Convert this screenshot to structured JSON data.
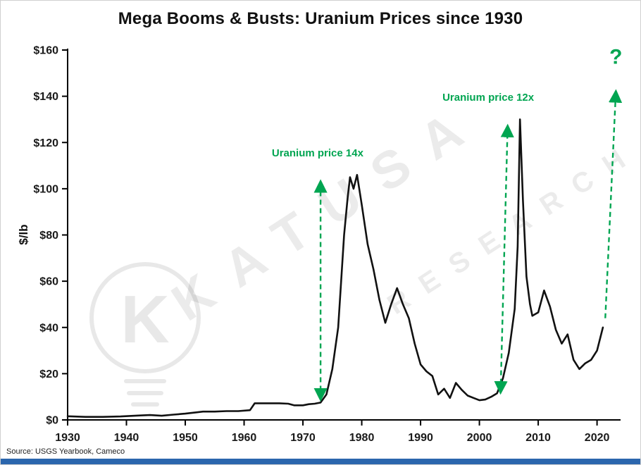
{
  "title": "Mega Booms & Busts: Uranium Prices since 1930",
  "footer": {
    "source": "Source: USGS Yearbook, Cameco"
  },
  "watermark": {
    "line1": "KATUSA",
    "line2": "RESEARCH"
  },
  "colors": {
    "accent_green": "#00A551",
    "line": "#111111",
    "axis": "#000000",
    "footer_bar": "#2b66ad"
  },
  "chart_data": {
    "type": "line",
    "title": "Mega Booms & Busts: Uranium Prices since 1930",
    "xlabel": "",
    "ylabel": "$/lb",
    "xlim": [
      1930,
      2024
    ],
    "ylim": [
      0,
      160
    ],
    "x_ticks": [
      1930,
      1940,
      1950,
      1960,
      1970,
      1980,
      1990,
      2000,
      2010,
      2020
    ],
    "y_ticks": [
      0,
      20,
      40,
      60,
      80,
      100,
      120,
      140,
      160
    ],
    "y_tick_prefix": "$",
    "grid": false,
    "legend": "none",
    "series": [
      {
        "name": "Uranium price ($/lb)",
        "points": [
          [
            1930,
            1.6
          ],
          [
            1933,
            1.3
          ],
          [
            1936,
            1.3
          ],
          [
            1939,
            1.5
          ],
          [
            1942,
            1.9
          ],
          [
            1944,
            2.1
          ],
          [
            1946,
            1.8
          ],
          [
            1948,
            2.3
          ],
          [
            1950,
            2.7
          ],
          [
            1952,
            3.3
          ],
          [
            1953,
            3.6
          ],
          [
            1955,
            3.6
          ],
          [
            1957,
            3.8
          ],
          [
            1959,
            3.8
          ],
          [
            1961,
            4.2
          ],
          [
            1961.8,
            7.2
          ],
          [
            1964,
            7.2
          ],
          [
            1966,
            7.2
          ],
          [
            1967.5,
            7.0
          ],
          [
            1968.5,
            6.3
          ],
          [
            1970,
            6.3
          ],
          [
            1971,
            6.8
          ],
          [
            1972,
            7.0
          ],
          [
            1973,
            7.5
          ],
          [
            1974,
            11
          ],
          [
            1975,
            22
          ],
          [
            1976,
            40
          ],
          [
            1977,
            80
          ],
          [
            1977.6,
            96
          ],
          [
            1978,
            105
          ],
          [
            1978.6,
            100
          ],
          [
            1979.2,
            106
          ],
          [
            1980,
            93
          ],
          [
            1981,
            76
          ],
          [
            1982,
            65
          ],
          [
            1983,
            52
          ],
          [
            1984,
            42
          ],
          [
            1985,
            50
          ],
          [
            1986,
            57
          ],
          [
            1987,
            50
          ],
          [
            1988,
            44
          ],
          [
            1989,
            33
          ],
          [
            1990,
            24
          ],
          [
            1991,
            21
          ],
          [
            1992,
            19
          ],
          [
            1993,
            11
          ],
          [
            1994,
            13.5
          ],
          [
            1995,
            9.5
          ],
          [
            1996,
            16
          ],
          [
            1997,
            13
          ],
          [
            1998,
            10.5
          ],
          [
            1999,
            9.5
          ],
          [
            2000,
            8.5
          ],
          [
            2001,
            8.8
          ],
          [
            2002,
            10
          ],
          [
            2003,
            11.5
          ],
          [
            2004,
            18
          ],
          [
            2005,
            29
          ],
          [
            2006,
            48
          ],
          [
            2006.5,
            75
          ],
          [
            2006.9,
            130
          ],
          [
            2007.4,
            95
          ],
          [
            2008,
            62
          ],
          [
            2008.6,
            50
          ],
          [
            2009,
            45
          ],
          [
            2010,
            46.5
          ],
          [
            2011,
            56
          ],
          [
            2012,
            49
          ],
          [
            2013,
            39
          ],
          [
            2014,
            33
          ],
          [
            2015,
            37
          ],
          [
            2016,
            26
          ],
          [
            2017,
            22
          ],
          [
            2018,
            24.5
          ],
          [
            2019,
            26
          ],
          [
            2020,
            30
          ],
          [
            2021,
            40
          ]
        ]
      }
    ],
    "annotations": [
      {
        "type": "arrow",
        "x1": 1973,
        "y1": 9,
        "x2": 1973,
        "y2": 103,
        "double": true
      },
      {
        "type": "label",
        "x": 1972.5,
        "y": 114,
        "text": "Uranium price 14x",
        "size": 15
      },
      {
        "type": "arrow",
        "x1": 2003.6,
        "y1": 12,
        "x2": 2004.8,
        "y2": 127,
        "double": true
      },
      {
        "type": "label",
        "x": 2001.5,
        "y": 138,
        "text": "Uranium price 12x",
        "size": 15
      },
      {
        "type": "arrow",
        "x1": 2021.4,
        "y1": 44,
        "x2": 2023.2,
        "y2": 142,
        "double": false
      },
      {
        "type": "label",
        "x": 2023.2,
        "y": 154,
        "text": "?",
        "size": 30
      }
    ]
  }
}
